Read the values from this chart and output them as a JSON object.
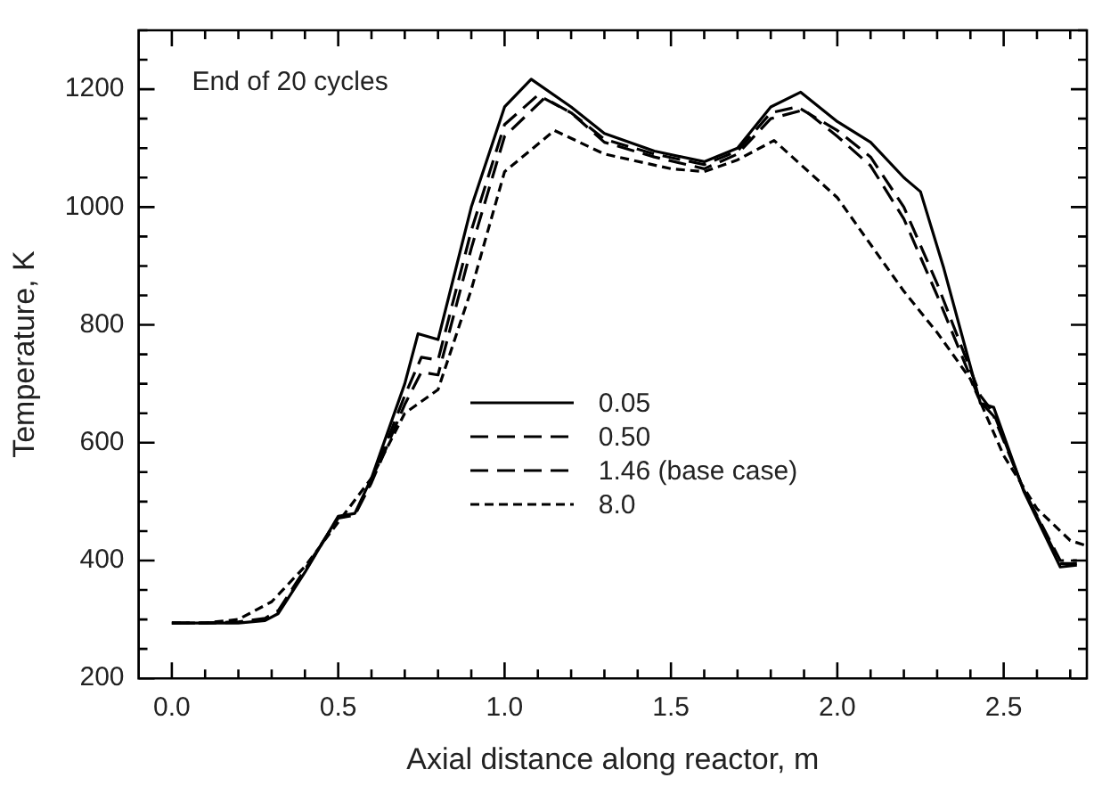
{
  "chart_data": {
    "type": "line",
    "xlabel": "Axial distance along reactor, m",
    "ylabel": "Temperature, K",
    "annotations": [
      "End of 20 cycles"
    ],
    "xlim": [
      -0.1,
      2.75
    ],
    "ylim": [
      200,
      1300
    ],
    "xticks": [
      {
        "value": 0,
        "label": "0.0"
      },
      {
        "value": 0.1,
        "label": null
      },
      {
        "value": 0.2,
        "label": null
      },
      {
        "value": 0.3,
        "label": null
      },
      {
        "value": 0.4,
        "label": null
      },
      {
        "value": 0.5,
        "label": "0.5"
      },
      {
        "value": 0.6,
        "label": null
      },
      {
        "value": 0.7,
        "label": null
      },
      {
        "value": 0.8,
        "label": null
      },
      {
        "value": 0.9,
        "label": null
      },
      {
        "value": 1,
        "label": "1.0"
      },
      {
        "value": 1.1,
        "label": null
      },
      {
        "value": 1.2,
        "label": null
      },
      {
        "value": 1.3,
        "label": null
      },
      {
        "value": 1.4,
        "label": null
      },
      {
        "value": 1.5,
        "label": "1.5"
      },
      {
        "value": 1.6,
        "label": null
      },
      {
        "value": 1.7,
        "label": null
      },
      {
        "value": 1.8,
        "label": null
      },
      {
        "value": 1.9,
        "label": null
      },
      {
        "value": 2,
        "label": "2.0"
      },
      {
        "value": 2.1,
        "label": null
      },
      {
        "value": 2.2,
        "label": null
      },
      {
        "value": 2.3,
        "label": null
      },
      {
        "value": 2.4,
        "label": null
      },
      {
        "value": 2.5,
        "label": "2.5"
      },
      {
        "value": 2.6,
        "label": null
      },
      {
        "value": 2.7,
        "label": null
      }
    ],
    "yticks": [
      200,
      {
        "value": 250,
        "label": null
      },
      {
        "value": 300,
        "label": null
      },
      {
        "value": 350,
        "label": null
      },
      400,
      {
        "value": 450,
        "label": null
      },
      {
        "value": 500,
        "label": null
      },
      {
        "value": 550,
        "label": null
      },
      600,
      {
        "value": 650,
        "label": null
      },
      {
        "value": 700,
        "label": null
      },
      {
        "value": 750,
        "label": null
      },
      800,
      {
        "value": 850,
        "label": null
      },
      {
        "value": 900,
        "label": null
      },
      {
        "value": 950,
        "label": null
      },
      1000,
      {
        "value": 1050,
        "label": null
      },
      {
        "value": 1100,
        "label": null
      },
      {
        "value": 1150,
        "label": null
      },
      1200,
      {
        "value": 1250,
        "label": null
      },
      {
        "value": 1300,
        "label": null
      }
    ],
    "grid": false,
    "legend": "center",
    "marker": "none",
    "series": [
      {
        "name": "0.05",
        "color": "#000000",
        "line_style": "solid",
        "x": [
          0,
          0.1,
          0.2,
          0.28,
          0.32,
          0.4,
          0.5,
          0.55,
          0.6,
          0.7,
          0.74,
          0.8,
          0.9,
          1.0,
          1.08,
          1.2,
          1.3,
          1.45,
          1.6,
          1.7,
          1.8,
          1.89,
          2.0,
          2.1,
          2.2,
          2.25,
          2.32,
          2.43,
          2.47,
          2.56,
          2.67,
          2.72
        ],
        "values": [
          294,
          294,
          294,
          298,
          310,
          380,
          475,
          480,
          540,
          700,
          785,
          775,
          1000,
          1170,
          1217,
          1170,
          1125,
          1095,
          1077,
          1100,
          1170,
          1195,
          1145,
          1110,
          1050,
          1026,
          896,
          667,
          660,
          518,
          389,
          392
        ]
      },
      {
        "name": "0.50",
        "color": "#000000",
        "line_style": "dashed",
        "x": [
          0,
          0.1,
          0.2,
          0.28,
          0.32,
          0.4,
          0.5,
          0.55,
          0.6,
          0.7,
          0.75,
          0.8,
          0.9,
          1.0,
          1.1,
          1.2,
          1.3,
          1.45,
          1.6,
          1.7,
          1.8,
          1.88,
          2.0,
          2.1,
          2.2,
          2.3,
          2.43,
          2.47,
          2.56,
          2.67,
          2.72
        ],
        "values": [
          294,
          294,
          295,
          300,
          312,
          382,
          473,
          478,
          535,
          680,
          745,
          740,
          960,
          1140,
          1190,
          1160,
          1115,
          1090,
          1072,
          1095,
          1160,
          1170,
          1130,
          1085,
          1000,
          870,
          680,
          650,
          520,
          395,
          395
        ]
      },
      {
        "name": "1.46 (base case)",
        "color": "#000000",
        "line_style": "dashed",
        "x": [
          0,
          0.1,
          0.2,
          0.28,
          0.32,
          0.4,
          0.5,
          0.55,
          0.6,
          0.7,
          0.75,
          0.8,
          0.9,
          1.0,
          1.12,
          1.2,
          1.3,
          1.45,
          1.6,
          1.7,
          1.8,
          1.9,
          2.0,
          2.1,
          2.2,
          2.3,
          2.43,
          2.47,
          2.56,
          2.67,
          2.72
        ],
        "values": [
          294,
          294,
          296,
          302,
          315,
          385,
          472,
          477,
          532,
          665,
          720,
          715,
          930,
          1120,
          1185,
          1160,
          1110,
          1085,
          1065,
          1090,
          1150,
          1165,
          1120,
          1070,
          980,
          850,
          670,
          645,
          520,
          400,
          400
        ]
      },
      {
        "name": "8.0",
        "color": "#000000",
        "line_style": "dotted",
        "x": [
          0,
          0.1,
          0.2,
          0.3,
          0.4,
          0.5,
          0.6,
          0.7,
          0.8,
          0.9,
          1.0,
          1.15,
          1.3,
          1.5,
          1.6,
          1.7,
          1.81,
          2.0,
          2.2,
          2.3,
          2.4,
          2.5,
          2.6,
          2.7,
          2.75
        ],
        "values": [
          294,
          294,
          300,
          330,
          390,
          465,
          540,
          650,
          690,
          860,
          1060,
          1130,
          1090,
          1065,
          1060,
          1080,
          1113,
          1016,
          857,
          787,
          708,
          578,
          488,
          434,
          425
        ]
      }
    ]
  }
}
